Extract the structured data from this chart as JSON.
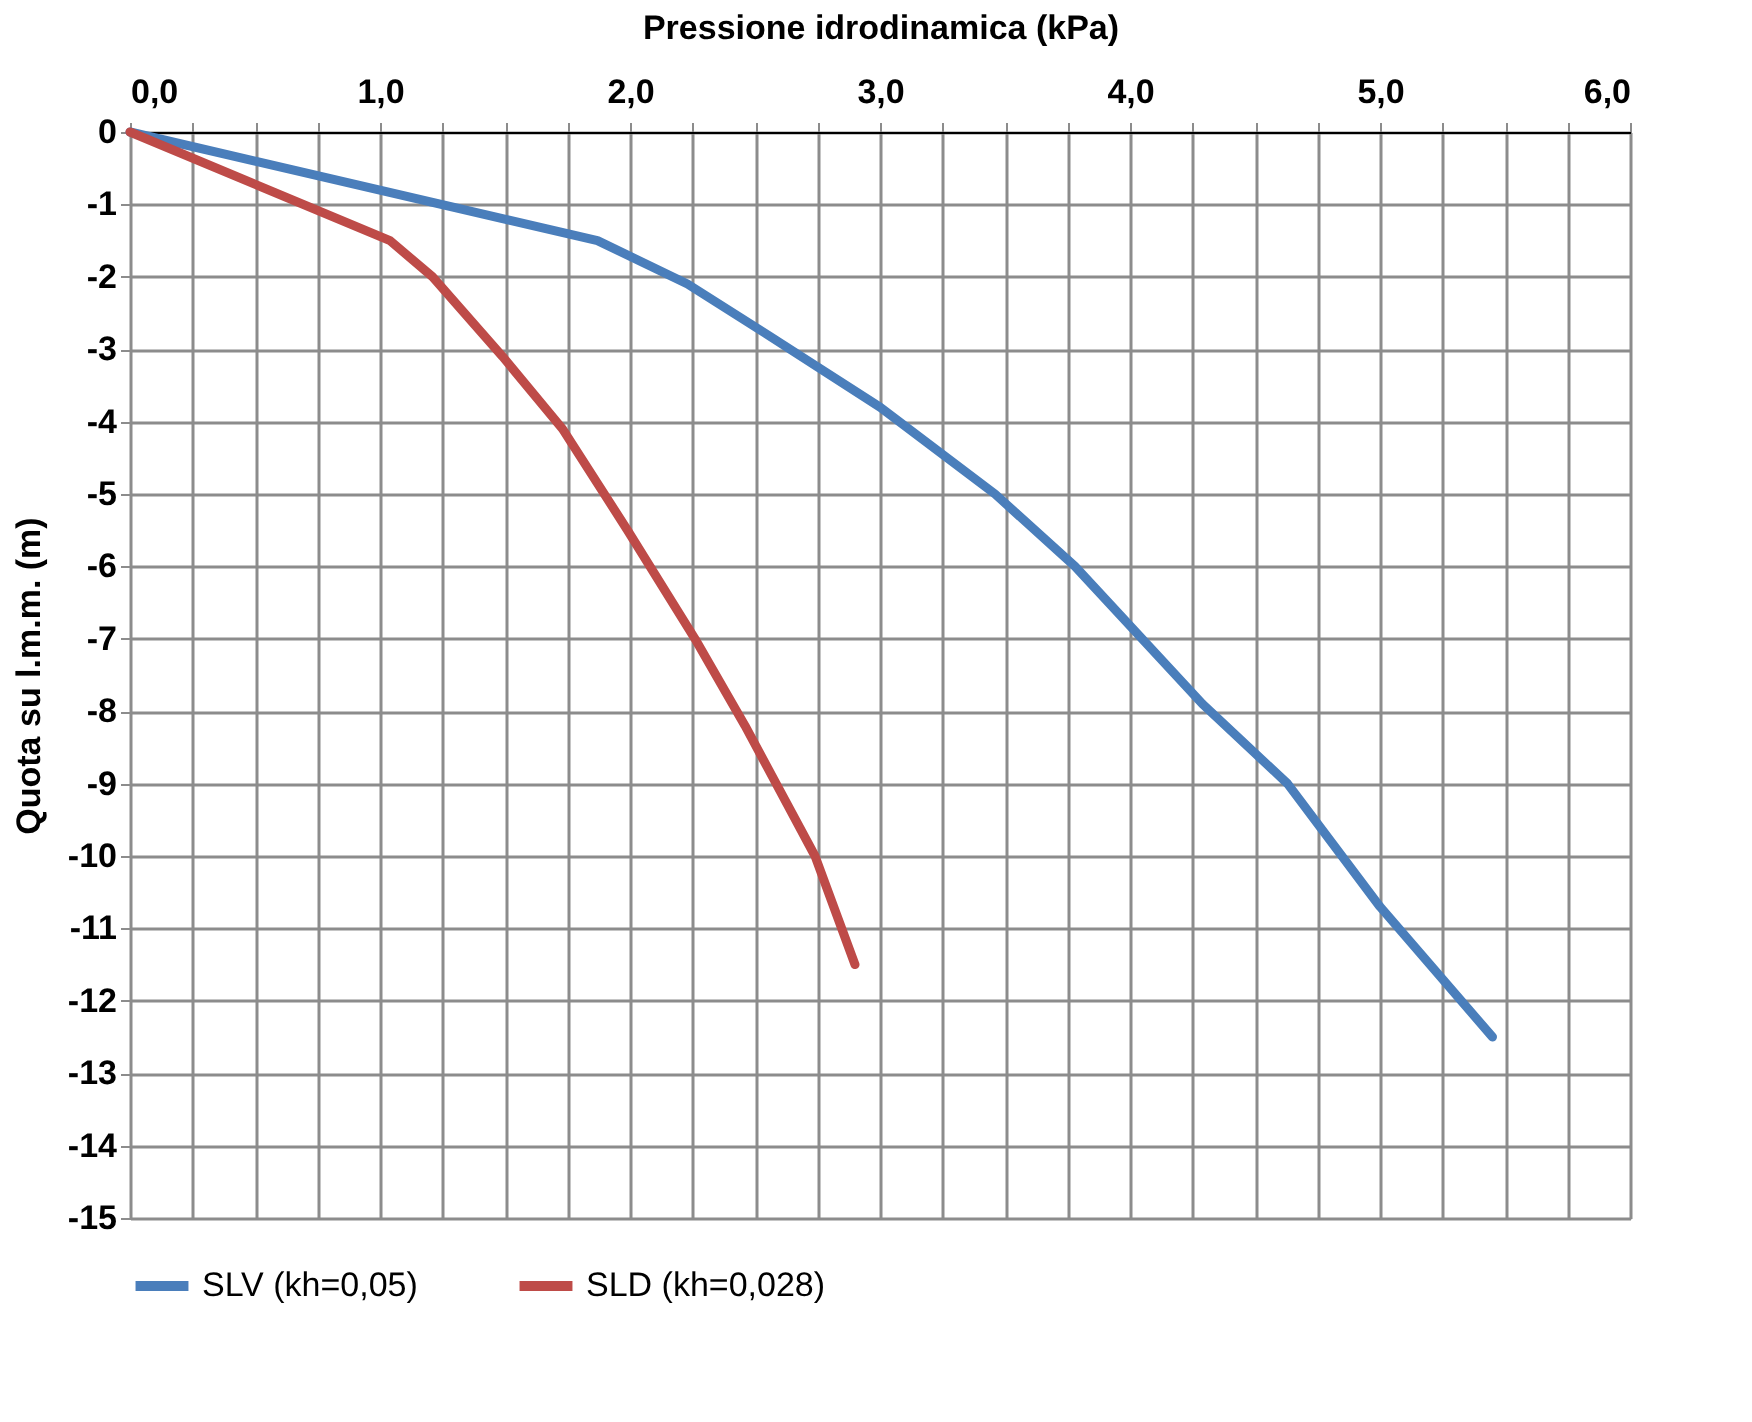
{
  "chart_data": {
    "type": "line",
    "xlabel": "Pressione idrodinamica  (kPa)",
    "ylabel": "Quota su l.m.m. (m)",
    "xlim": [
      0,
      6
    ],
    "ylim": [
      -15,
      0
    ],
    "xticks": [
      {
        "value": 0,
        "label": "0,0"
      },
      {
        "value": 0.25,
        "label": null
      },
      {
        "value": 0.5,
        "label": null
      },
      {
        "value": 0.75,
        "label": null
      },
      {
        "value": 1,
        "label": "1,0"
      },
      {
        "value": 1.25,
        "label": null
      },
      {
        "value": 1.5,
        "label": null
      },
      {
        "value": 1.75,
        "label": null
      },
      {
        "value": 2,
        "label": "2,0"
      },
      {
        "value": 2.25,
        "label": null
      },
      {
        "value": 2.5,
        "label": null
      },
      {
        "value": 2.75,
        "label": null
      },
      {
        "value": 3,
        "label": "3,0"
      },
      {
        "value": 3.25,
        "label": null
      },
      {
        "value": 3.5,
        "label": null
      },
      {
        "value": 3.75,
        "label": null
      },
      {
        "value": 4,
        "label": "4,0"
      },
      {
        "value": 4.25,
        "label": null
      },
      {
        "value": 4.5,
        "label": null
      },
      {
        "value": 4.75,
        "label": null
      },
      {
        "value": 5,
        "label": "5,0"
      },
      {
        "value": 5.25,
        "label": null
      },
      {
        "value": 5.5,
        "label": null
      },
      {
        "value": 5.75,
        "label": null
      },
      {
        "value": 6,
        "label": "6,0"
      }
    ],
    "yticks": [
      0,
      -1,
      -2,
      -3,
      -4,
      -5,
      -6,
      -7,
      -8,
      -9,
      -10,
      -11,
      -12,
      -13,
      -14,
      -15
    ],
    "grid": true,
    "legend": "bottom",
    "marker": "none",
    "line_style": "solid",
    "series": [
      {
        "name": "SLV (kh=0,05)",
        "color": "#4a7ebb",
        "x": [
          0,
          1.87,
          2.23,
          2.55,
          3.0,
          3.46,
          3.78,
          4.29,
          4.63,
          5.0,
          5.45
        ],
        "values": [
          0,
          -1.5,
          -2.1,
          -2.8,
          -3.8,
          -5.0,
          -6.0,
          -7.9,
          -9.0,
          -10.7,
          -12.5
        ]
      },
      {
        "name": "SLD (kh=0,028)",
        "color": "#be4b48",
        "x": [
          0,
          1.04,
          1.21,
          1.49,
          1.73,
          1.99,
          2.26,
          2.46,
          2.74,
          2.9
        ],
        "values": [
          0,
          -1.5,
          -2.0,
          -3.1,
          -4.1,
          -5.5,
          -7.0,
          -8.2,
          -10.0,
          -11.5
        ]
      }
    ]
  }
}
